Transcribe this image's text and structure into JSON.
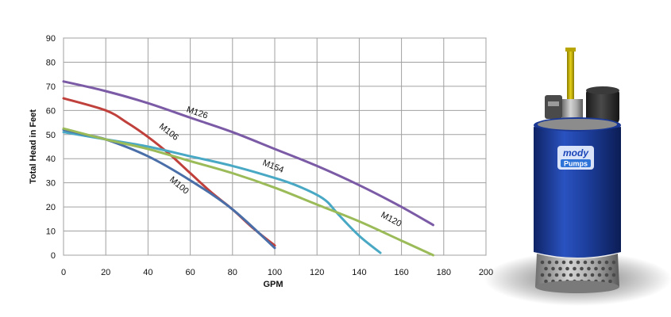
{
  "chart_data": {
    "type": "line",
    "xlabel": "GPM",
    "ylabel": "Total Head in Feet",
    "xlim": [
      0,
      200
    ],
    "ylim": [
      0,
      90
    ],
    "xticks": [
      "0",
      "20",
      "40",
      "60",
      "80",
      "100",
      "120",
      "140",
      "160",
      "180",
      "200"
    ],
    "yticks": [
      "0",
      "10",
      "20",
      "30",
      "40",
      "50",
      "60",
      "70",
      "80",
      "90"
    ],
    "grid": true,
    "series": [
      {
        "name": "M126",
        "color": "#7b5aa6",
        "x": [
          0,
          20,
          40,
          60,
          80,
          100,
          120,
          140,
          160,
          175
        ],
        "y": [
          72,
          68,
          63,
          57,
          51,
          44,
          37,
          29,
          20,
          12.5
        ]
      },
      {
        "name": "M106",
        "color": "#c0403c",
        "x": [
          0,
          20,
          30,
          40,
          50,
          60,
          70,
          80,
          90,
          100
        ],
        "y": [
          65,
          60,
          55,
          49,
          42,
          34,
          26,
          19,
          11,
          4
        ]
      },
      {
        "name": "M154",
        "color": "#49a8c4",
        "x": [
          0,
          20,
          40,
          60,
          80,
          100,
          110,
          120,
          125,
          130,
          140,
          150
        ],
        "y": [
          51,
          48,
          45,
          41,
          37,
          32,
          29,
          25,
          22,
          17,
          8,
          1
        ]
      },
      {
        "name": "M100",
        "color": "#4a6fa8",
        "x": [
          0,
          10,
          20,
          40,
          60,
          80,
          100
        ],
        "y": [
          52,
          50,
          48,
          41,
          31,
          19,
          3
        ]
      },
      {
        "name": "M120",
        "color": "#9bbb59",
        "x": [
          0,
          20,
          40,
          60,
          80,
          100,
          120,
          140,
          160,
          175
        ],
        "y": [
          52.5,
          48,
          44,
          39,
          34,
          28,
          21,
          14,
          6,
          0
        ]
      }
    ]
  },
  "pump_image": {
    "brand_line1": "mody",
    "brand_line2": "Pumps",
    "body_color": "#1d3f9e",
    "motor_color": "#2b2b2b",
    "hose_color": "#c9b400"
  }
}
